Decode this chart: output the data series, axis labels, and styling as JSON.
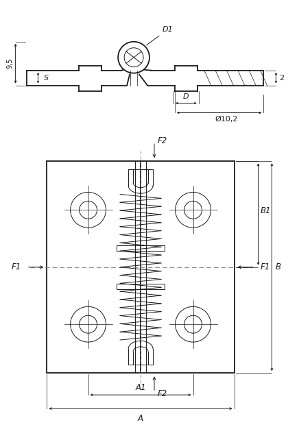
{
  "bg_color": "#ffffff",
  "line_color": "#1a1a1a",
  "fig_width": 4.36,
  "fig_height": 6.23,
  "dpi": 100,
  "labels": {
    "D1": "D1",
    "D": "D",
    "S": "S",
    "dia": "Ø10,2",
    "dim_95": "9,5",
    "dim_2": "2",
    "A": "A",
    "A1": "A1",
    "B": "B",
    "B1": "B1",
    "F1": "F1",
    "F2": "F2"
  }
}
